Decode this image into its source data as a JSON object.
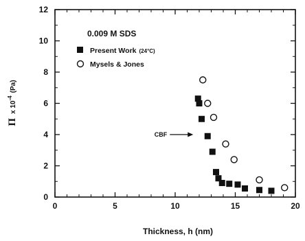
{
  "chart_data": {
    "type": "scatter",
    "annotation": "0.009 M SDS",
    "xlabel": "Thickness, h (nm)",
    "ylabel": {
      "symbol": "Π",
      "factor": "x 10",
      "exponent": "-4",
      "unit": "(Pa)"
    },
    "xlim": [
      0,
      20
    ],
    "ylim": [
      0,
      12
    ],
    "xticks": [
      0,
      5,
      10,
      15,
      20
    ],
    "yticks": [
      0,
      2,
      4,
      6,
      8,
      10,
      12
    ],
    "grid": false,
    "legend_position": "top-left",
    "series": [
      {
        "name": "Present Work",
        "name_suffix": "(24°C)",
        "marker": "filled-square",
        "x": [
          11.9,
          12.0,
          12.2,
          12.7,
          13.1,
          13.4,
          13.6,
          13.9,
          14.5,
          15.2,
          15.8,
          17.0,
          18.0
        ],
        "y": [
          6.3,
          6.0,
          5.0,
          3.9,
          2.9,
          1.6,
          1.2,
          0.9,
          0.85,
          0.8,
          0.55,
          0.45,
          0.4
        ]
      },
      {
        "name": "Mysels & Jones",
        "name_suffix": "",
        "marker": "open-circle",
        "x": [
          12.3,
          12.7,
          13.2,
          14.2,
          14.9,
          17.0,
          19.1
        ],
        "y": [
          7.5,
          6.0,
          5.1,
          3.4,
          2.4,
          1.1,
          0.6
        ]
      }
    ],
    "arrow_label": {
      "text": "CBF",
      "x": 11.5,
      "y": 4.0
    },
    "colors": {
      "ink": "#111111",
      "background": "#ffffff"
    }
  }
}
